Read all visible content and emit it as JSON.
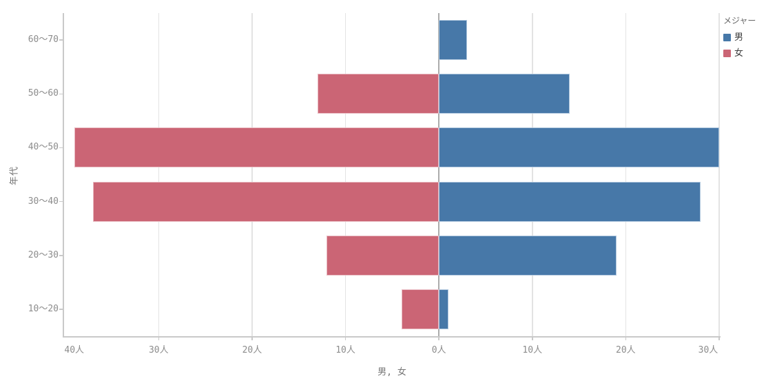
{
  "chart_data": {
    "type": "bar",
    "variant": "horizontal-diverging-pyramid",
    "categories": [
      "60〜70",
      "50〜60",
      "40〜50",
      "30〜40",
      "20〜30",
      "10〜20"
    ],
    "series": [
      {
        "id": "male",
        "name": "男",
        "color": "#4778a8",
        "border_color": "#b0c7de",
        "side": "right",
        "values": [
          3,
          14,
          30,
          28,
          19,
          1
        ]
      },
      {
        "id": "female",
        "name": "女",
        "color": "#cb6575",
        "border_color": "#e9bcc3",
        "side": "left",
        "values": [
          0,
          13,
          39,
          37,
          12,
          4
        ]
      }
    ],
    "xlabel": "男, 女",
    "ylabel": "年代",
    "unit": "人",
    "x_tick_values": [
      -40,
      -30,
      -20,
      -10,
      0,
      10,
      20,
      30
    ],
    "x_tick_labels": [
      "40人",
      "30人",
      "20人",
      "10人",
      "0人",
      "10人",
      "20人",
      "30人"
    ],
    "xlim": [
      -40.2,
      30.15
    ],
    "grid": "vertical gridlines every 10, zero axis emphasized",
    "legend": {
      "title": "メジャー",
      "position": "top-right",
      "entries": [
        "男",
        "女"
      ]
    }
  }
}
